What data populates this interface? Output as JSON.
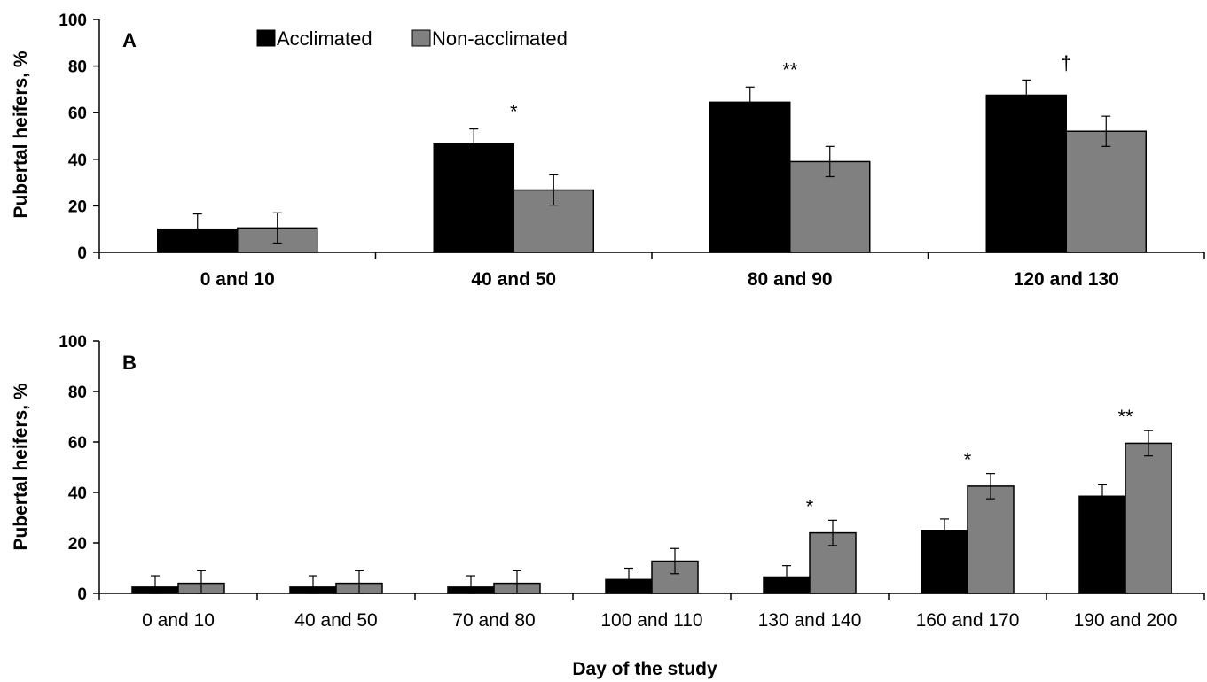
{
  "legend": [
    {
      "name": "Acclimated",
      "color": "#000000"
    },
    {
      "name": "Non-acclimated",
      "color": "#808080"
    }
  ],
  "xlabel": "Day of the study",
  "chart_data": [
    {
      "type": "bar",
      "panel": "A",
      "ylabel": "Pubertal heifers, %",
      "ylim": [
        0,
        100
      ],
      "yticks": [
        0,
        20,
        40,
        60,
        80,
        100
      ],
      "categories": [
        "0 and 10",
        "40 and 50",
        "80 and 90",
        "120 and 130"
      ],
      "series": [
        {
          "name": "Acclimated",
          "values": [
            10,
            46.5,
            64.5,
            67.5
          ],
          "errors": [
            6.5,
            6.5,
            6.5,
            6.5
          ]
        },
        {
          "name": "Non-acclimated",
          "values": [
            10.5,
            26.8,
            39,
            52
          ],
          "errors": [
            6.5,
            6.5,
            6.5,
            6.5
          ]
        }
      ],
      "significance": [
        "",
        "*",
        "**",
        "†"
      ],
      "legend_position": "top"
    },
    {
      "type": "bar",
      "panel": "B",
      "ylabel": "Pubertal heifers, %",
      "ylim": [
        0,
        100
      ],
      "yticks": [
        0,
        20,
        40,
        60,
        80,
        100
      ],
      "categories": [
        "0 and 10",
        "40 and 50",
        "70 and 80",
        "100 and 110",
        "130 and 140",
        "160 and 170",
        "190 and 200"
      ],
      "series": [
        {
          "name": "Acclimated",
          "values": [
            2.5,
            2.5,
            2.5,
            5.5,
            6.5,
            25,
            38.5
          ],
          "errors": [
            4.5,
            4.5,
            4.5,
            4.5,
            4.5,
            4.5,
            4.5
          ]
        },
        {
          "name": "Non-acclimated",
          "values": [
            4,
            4,
            4,
            12.8,
            24,
            42.5,
            59.5
          ],
          "errors": [
            5,
            5,
            5,
            5,
            5,
            5,
            5
          ]
        }
      ],
      "significance": [
        "",
        "",
        "",
        "",
        "*",
        "*",
        "**"
      ]
    }
  ]
}
